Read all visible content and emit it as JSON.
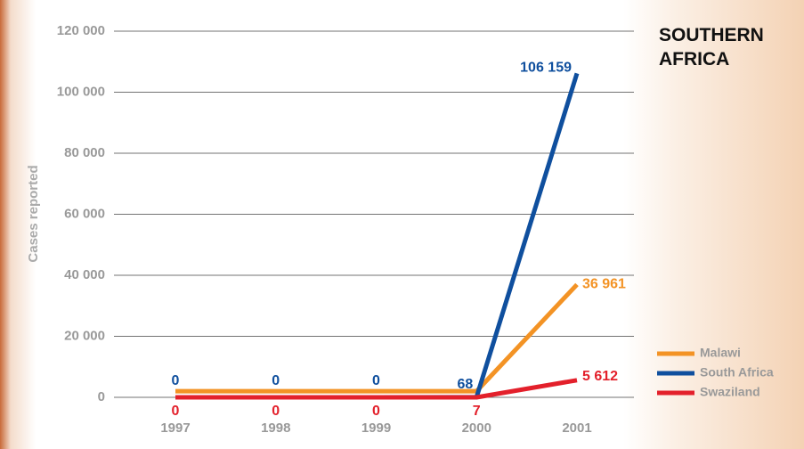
{
  "chart_data": {
    "type": "line",
    "title": "SOUTHERN AFRICA",
    "y_label": "Cases reported",
    "categories": [
      "1997",
      "1998",
      "1999",
      "2000",
      "2001"
    ],
    "series": [
      {
        "name": "Malawi",
        "color": "#f39325",
        "values": [
          2000,
          2000,
          2000,
          2000,
          36961
        ],
        "value_labels": [
          null,
          null,
          null,
          null,
          "36 961"
        ]
      },
      {
        "name": "South Africa",
        "color": "#0f4f9e",
        "values": [
          0,
          0,
          0,
          68,
          106159
        ],
        "value_labels": [
          "0",
          "0",
          "0",
          "68",
          "106 159"
        ]
      },
      {
        "name": "Swaziland",
        "color": "#e3202b",
        "values": [
          0,
          0,
          0,
          7,
          5612
        ],
        "value_labels": [
          "0",
          "0",
          "0",
          "7",
          "5 612"
        ]
      }
    ],
    "ylim": [
      0,
      120000
    ],
    "yticks": [
      {
        "value": 0,
        "label": "0"
      },
      {
        "value": 20000,
        "label": "20 000"
      },
      {
        "value": 40000,
        "label": "40 000"
      },
      {
        "value": 60000,
        "label": "60 000"
      },
      {
        "value": 80000,
        "label": "80 000"
      },
      {
        "value": 100000,
        "label": "100 000"
      },
      {
        "value": 120000,
        "label": "120 000"
      }
    ],
    "grid": true,
    "legend": "bottom-right"
  }
}
